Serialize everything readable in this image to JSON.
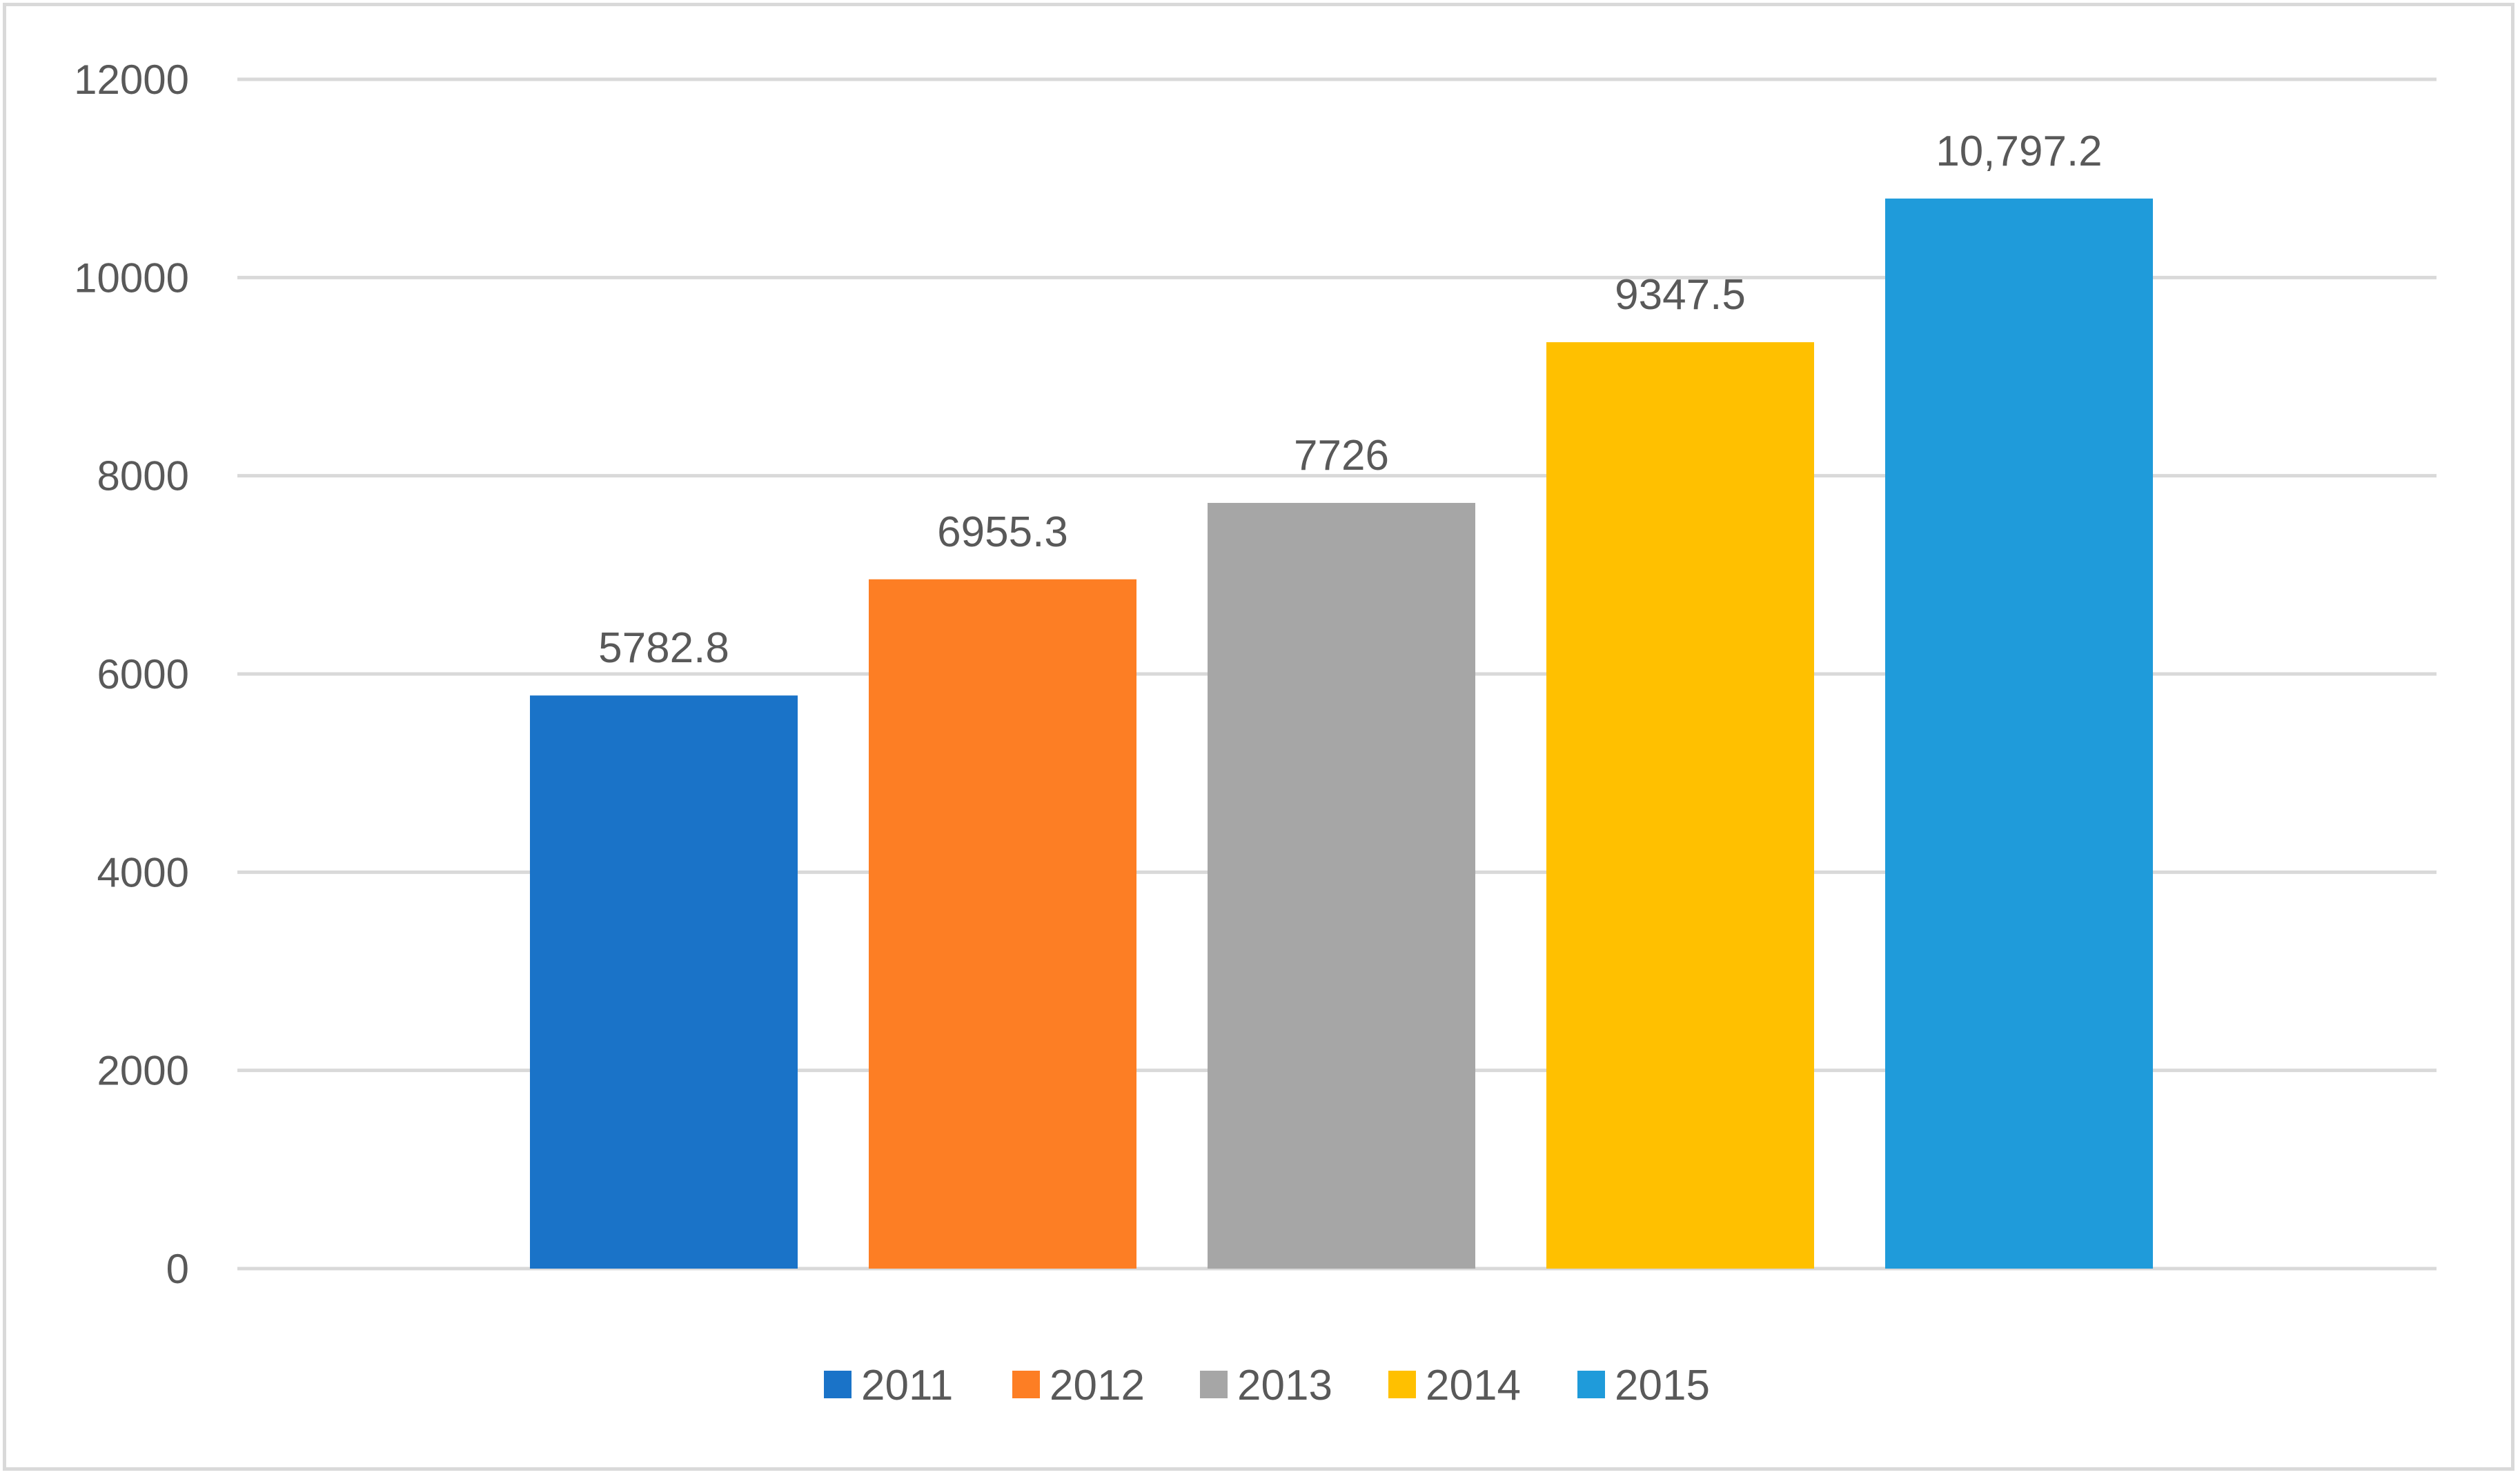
{
  "chart_data": {
    "type": "bar",
    "title": "",
    "xlabel": "",
    "ylabel": "",
    "ylim": [
      0,
      12000
    ],
    "yticks": [
      0,
      2000,
      4000,
      6000,
      8000,
      10000,
      12000
    ],
    "yticks_labels": [
      "0",
      "2000",
      "4000",
      "6000",
      "8000",
      "10000",
      "12000"
    ],
    "grid": true,
    "legend_position": "bottom",
    "categories": [
      "2011",
      "2012",
      "2013",
      "2014",
      "2015"
    ],
    "values": [
      5782.8,
      6955.3,
      7726,
      9347.5,
      10797.2
    ],
    "data_labels": [
      "5782.8",
      "6955.3",
      "7726",
      "9347.5",
      "10,797.2"
    ],
    "colors": [
      "#1a73c8",
      "#fd7e24",
      "#a6a6a6",
      "#ffc000",
      "#1f9bda"
    ]
  },
  "style": {
    "gridline_color": "#d9d9d9",
    "axis_line_color": "#d9d9d9",
    "text_color": "#595959",
    "border_color": "#d9d9d9"
  }
}
